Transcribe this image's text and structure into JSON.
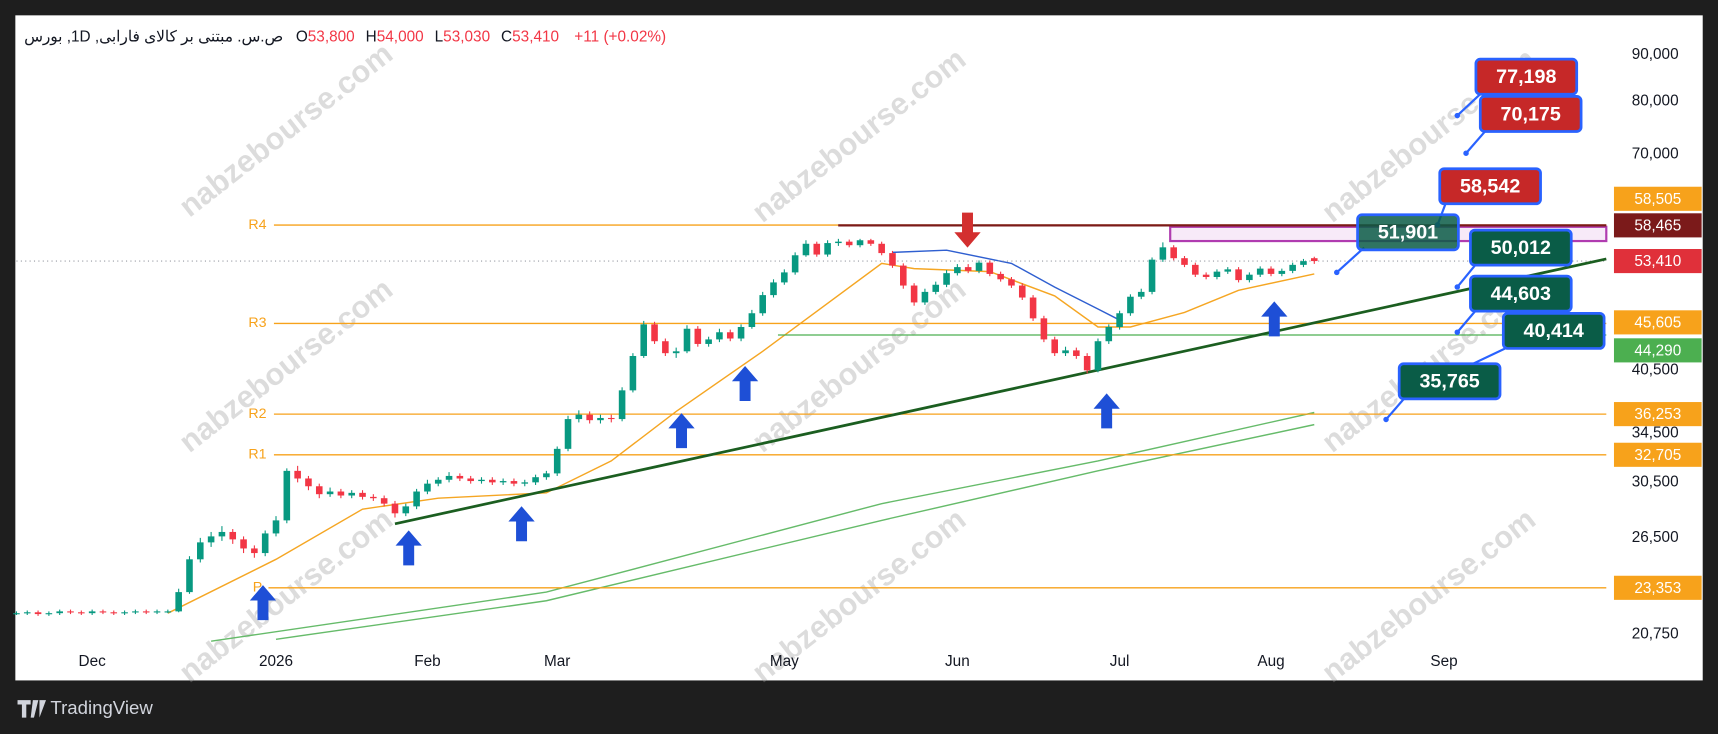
{
  "header": {
    "title": "ص.س. مبتنی بر کالای فارابی, 1D, بورس",
    "ohlc": [
      {
        "key": "O",
        "value": "53,800"
      },
      {
        "key": "H",
        "value": "54,000"
      },
      {
        "key": "L",
        "value": "53,030"
      },
      {
        "key": "C",
        "value": "53,410"
      }
    ],
    "change": "+11 (+0.02%)"
  },
  "watermark": "nabzebourse.com",
  "footer": {
    "brand": "TradingView"
  },
  "chart_data": {
    "type": "candlestick",
    "log_scale": true,
    "grid": false,
    "colors": {
      "up": "#089981",
      "down": "#f23645"
    },
    "xlim": [
      0,
      147
    ],
    "xticks": [
      {
        "value": 7,
        "label": "Dec"
      },
      {
        "value": 24,
        "label": "2026"
      },
      {
        "value": 38,
        "label": "Feb"
      },
      {
        "value": 50,
        "label": "Mar"
      },
      {
        "value": 71,
        "label": "May"
      },
      {
        "value": 87,
        "label": "Jun"
      },
      {
        "value": 102,
        "label": "Jul"
      },
      {
        "value": 116,
        "label": "Aug"
      },
      {
        "value": 132,
        "label": "Sep"
      }
    ],
    "ylim": [
      20130,
      99500
    ],
    "yticks": [
      {
        "value": 90000,
        "label": "90,000"
      },
      {
        "value": 80000,
        "label": "80,000"
      },
      {
        "value": 70000,
        "label": "70,000"
      },
      {
        "value": 40500,
        "label": "40,500"
      },
      {
        "value": 34500,
        "label": "34,500"
      },
      {
        "value": 30500,
        "label": "30,500"
      },
      {
        "value": 26500,
        "label": "26,500"
      },
      {
        "value": 20750,
        "label": "20,750"
      }
    ],
    "open": [
      21900,
      21900,
      21950,
      21850,
      21900,
      22000,
      21950,
      21900,
      22000,
      21950,
      21900,
      21950,
      22000,
      21950,
      22000,
      22000,
      23100,
      25100,
      26200,
      26600,
      26900,
      26400,
      25800,
      25500,
      26800,
      27700,
      31400,
      30800,
      30200,
      29600,
      29800,
      29500,
      29700,
      29400,
      29300,
      28900,
      28200,
      28700,
      29800,
      30400,
      30700,
      31000,
      30800,
      30600,
      30700,
      30500,
      30600,
      30400,
      30500,
      30900,
      31200,
      33200,
      35800,
      36200,
      35700,
      35900,
      35800,
      38500,
      42000,
      45500,
      43600,
      42300,
      42500,
      45000,
      43300,
      43800,
      44600,
      43900,
      45200,
      46800,
      49000,
      50600,
      51900,
      54200,
      55800,
      54300,
      55900,
      56100,
      55600,
      56300,
      55800,
      54500,
      52800,
      50200,
      48100,
      49400,
      50300,
      51800,
      52600,
      52100,
      53200,
      51700,
      51000,
      50200,
      48700,
      46200,
      43800,
      42300,
      42600,
      42000,
      40500,
      43600,
      45200,
      46800,
      48800,
      49400,
      53600,
      55300,
      53800,
      52900,
      51600,
      51300,
      52000,
      52300,
      50900,
      51600,
      52400,
      51700,
      52100,
      52900,
      53800
    ],
    "high": [
      22000,
      22050,
      22050,
      22000,
      22100,
      22100,
      22050,
      22100,
      22100,
      22050,
      22050,
      22100,
      22100,
      22100,
      22100,
      23300,
      25300,
      26500,
      26900,
      27300,
      27100,
      26600,
      26000,
      27000,
      28000,
      31600,
      31800,
      31000,
      30400,
      30100,
      30000,
      29900,
      29900,
      29600,
      29500,
      29100,
      28900,
      30000,
      30700,
      30900,
      31300,
      31200,
      31000,
      30900,
      30900,
      30800,
      30800,
      30700,
      31100,
      31400,
      33400,
      36100,
      36600,
      36500,
      36200,
      36200,
      38800,
      42300,
      45900,
      45800,
      43900,
      42900,
      45400,
      45300,
      44100,
      45000,
      44900,
      45500,
      47200,
      49400,
      51000,
      52300,
      54600,
      56300,
      56100,
      56300,
      56500,
      56400,
      56500,
      56500,
      56100,
      54800,
      53100,
      50500,
      49800,
      50700,
      52200,
      53000,
      53000,
      53500,
      53500,
      52000,
      51300,
      50500,
      49000,
      46500,
      44100,
      43000,
      42900,
      42300,
      43900,
      45500,
      47100,
      49100,
      49800,
      53900,
      56000,
      55600,
      54100,
      53200,
      51900,
      52300,
      52600,
      52600,
      51900,
      52700,
      52700,
      52400,
      53200,
      53700,
      54000
    ],
    "low": [
      21800,
      21800,
      21750,
      21750,
      21800,
      21850,
      21800,
      21800,
      21850,
      21800,
      21800,
      21850,
      21850,
      21850,
      21900,
      21950,
      23000,
      24900,
      25900,
      26300,
      26100,
      25500,
      25200,
      25300,
      26600,
      27500,
      30500,
      29900,
      29300,
      29400,
      29300,
      29300,
      29200,
      29100,
      28700,
      27900,
      28000,
      28500,
      29600,
      30200,
      30500,
      30600,
      30400,
      30400,
      30300,
      30300,
      30200,
      30200,
      30300,
      30700,
      31000,
      33000,
      35500,
      35400,
      35400,
      35500,
      35600,
      38300,
      41800,
      43300,
      42000,
      41800,
      42300,
      43000,
      43000,
      43500,
      43600,
      43600,
      45000,
      46500,
      48700,
      50300,
      51600,
      54000,
      54000,
      54000,
      55500,
      55300,
      55300,
      55500,
      54200,
      52500,
      49800,
      47700,
      47800,
      49100,
      50000,
      51500,
      51800,
      51800,
      51400,
      50700,
      49900,
      48400,
      45900,
      43500,
      42000,
      42000,
      41700,
      40200,
      40300,
      43300,
      44900,
      46500,
      48500,
      49100,
      53300,
      53500,
      52600,
      51300,
      51000,
      51000,
      51700,
      50600,
      50600,
      51300,
      51400,
      51400,
      51800,
      52600,
      53030
    ],
    "close": [
      21900,
      21950,
      21850,
      21900,
      22000,
      21950,
      21900,
      22000,
      21950,
      21900,
      21950,
      22000,
      21950,
      22000,
      22000,
      23100,
      25100,
      26200,
      26600,
      26900,
      26400,
      25800,
      25500,
      26800,
      27700,
      31400,
      30800,
      30200,
      29600,
      29800,
      29500,
      29700,
      29400,
      29300,
      28900,
      28200,
      28700,
      29800,
      30400,
      30700,
      31000,
      30800,
      30600,
      30700,
      30500,
      30600,
      30400,
      30500,
      30900,
      31200,
      33200,
      35800,
      36200,
      35700,
      35900,
      35800,
      38500,
      42000,
      45500,
      43600,
      42300,
      42500,
      45000,
      43300,
      43800,
      44600,
      43900,
      45200,
      46800,
      49000,
      50600,
      51900,
      54200,
      55800,
      54300,
      55900,
      56100,
      55600,
      56300,
      55800,
      54500,
      52800,
      50200,
      48100,
      49400,
      50300,
      51800,
      52600,
      52100,
      53200,
      51700,
      51000,
      50200,
      48700,
      46200,
      43800,
      42300,
      42600,
      42000,
      40500,
      43600,
      45200,
      46800,
      48800,
      49400,
      53600,
      55300,
      53800,
      52900,
      51600,
      51300,
      52000,
      52300,
      50900,
      51600,
      52400,
      51700,
      52100,
      52900,
      53400,
      53410
    ],
    "moving_averages": [
      {
        "color": "#f5a623",
        "x": [
          14,
          24,
          32,
          39,
          49,
          55,
          61,
          69,
          80,
          83,
          90,
          96,
          100,
          103,
          108,
          113,
          120
        ],
        "values": [
          21900,
          25100,
          28500,
          29300,
          29700,
          32200,
          36500,
          42500,
          53100,
          52400,
          52000,
          48900,
          45200,
          45200,
          46900,
          49600,
          51700
        ]
      },
      {
        "color": "#2f5fd0",
        "x": [
          81,
          86,
          92,
          96,
          100,
          102
        ],
        "values": [
          54600,
          54900,
          53100,
          50000,
          47300,
          46000
        ]
      },
      {
        "color": "#66bb6a",
        "x": [
          18,
          49,
          80,
          100,
          120
        ],
        "values": [
          20400,
          23100,
          28900,
          32200,
          36400
        ]
      },
      {
        "color": "#66bb6a",
        "x": [
          24,
          49,
          80,
          100,
          120
        ],
        "values": [
          20500,
          22600,
          27700,
          31400,
          35300
        ]
      }
    ],
    "trendline": {
      "color": "#1b5e20",
      "x": [
        35,
        147
      ],
      "values": [
        27460,
        53700
      ]
    },
    "levels": [
      {
        "name": "R4",
        "value": 58505,
        "label": "58,505",
        "color": "#f7a21b"
      },
      {
        "value": 58465,
        "label": "58,465",
        "color": "#7b1a1a"
      },
      {
        "value": 53410,
        "label": "53,410",
        "color": "#e0303a",
        "style": "dotted"
      },
      {
        "name": "R3",
        "value": 45605,
        "label": "45,605",
        "color": "#f7a21b"
      },
      {
        "value": 44290,
        "label": "44,290",
        "color": "#4caf50"
      },
      {
        "name": "R2",
        "value": 36253,
        "label": "36,253",
        "color": "#f7a21b"
      },
      {
        "name": "R1",
        "value": 32705,
        "label": "32,705",
        "color": "#f7a21b"
      },
      {
        "name": "P",
        "value": 23353,
        "label": "23,353",
        "color": "#f7a21b"
      }
    ],
    "targets": [
      {
        "value": 77198,
        "label": "77,198",
        "color": "#c62828"
      },
      {
        "value": 70175,
        "label": "70,175",
        "color": "#c62828"
      },
      {
        "value": 58542,
        "label": "58,542",
        "color": "#c62828"
      },
      {
        "value": 51901,
        "label": "51,901",
        "color": "#0a5c47"
      },
      {
        "value": 50012,
        "label": "50,012",
        "color": "#0a5c47"
      },
      {
        "value": 44603,
        "label": "44,603",
        "color": "#0a5c47"
      },
      {
        "value": 40414,
        "label": "40,414",
        "color": "#0a5c47"
      },
      {
        "value": 35765,
        "label": "35,765",
        "color": "#0a5c47"
      }
    ]
  }
}
